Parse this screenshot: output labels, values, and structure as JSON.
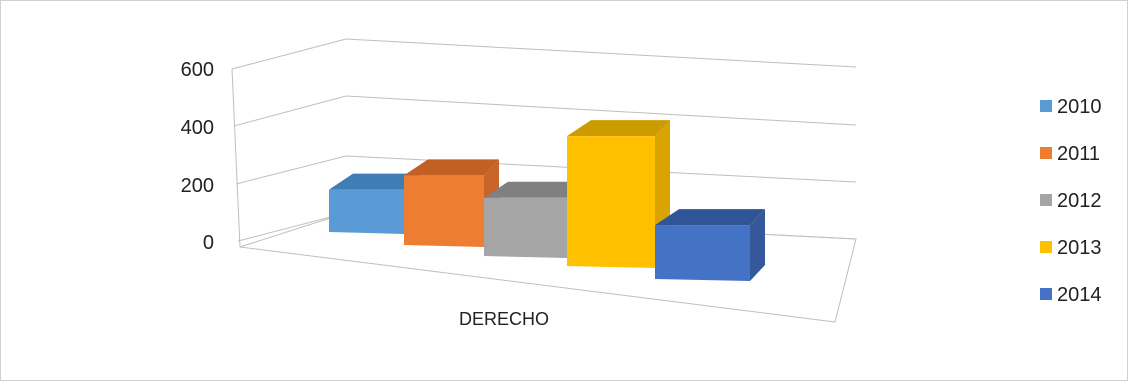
{
  "chart_data": {
    "type": "bar",
    "categories": [
      "DERECHO"
    ],
    "series": [
      {
        "name": "2010",
        "values": [
          155
        ],
        "color": "#5B9BD5",
        "side": "#4A84B8",
        "top": "#417DB5"
      },
      {
        "name": "2011",
        "values": [
          250
        ],
        "color": "#ED7D31",
        "side": "#C8642A",
        "top": "#C25F22"
      },
      {
        "name": "2012",
        "values": [
          210
        ],
        "color": "#A5A5A5",
        "side": "#8C8C8C",
        "top": "#808080"
      },
      {
        "name": "2013",
        "values": [
          460
        ],
        "color": "#FFC000",
        "side": "#D9A300",
        "top": "#CC9B00"
      },
      {
        "name": "2014",
        "values": [
          195
        ],
        "color": "#4472C4",
        "side": "#34589A",
        "top": "#2F5597"
      }
    ],
    "y_ticks": [
      "0",
      "200",
      "400",
      "600"
    ],
    "ylim": [
      0,
      600
    ],
    "grid": true,
    "legend_position": "right",
    "title": "",
    "xlabel": "",
    "ylabel": ""
  }
}
